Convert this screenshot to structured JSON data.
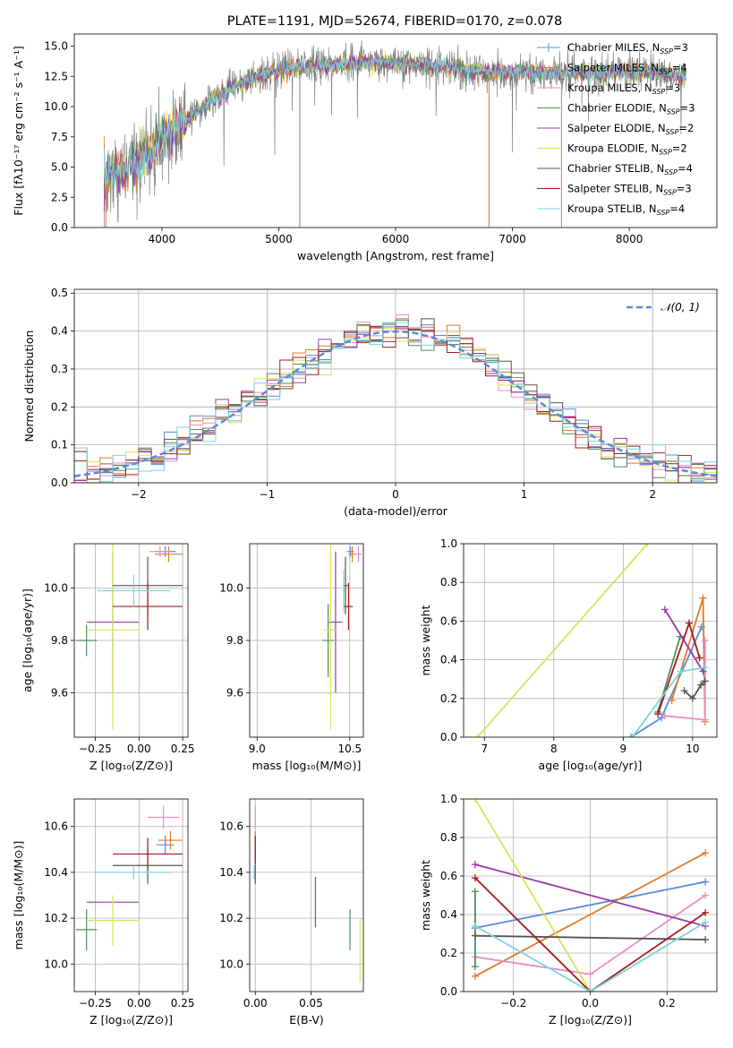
{
  "title": "PLATE=1191, MJD=52674, FIBERID=0170, z=0.078",
  "colors": {
    "Chabrier MILES": "#5b8bd9",
    "Salpeter MILES": "#e07b2a",
    "Kroupa MILES": "#e88ec4",
    "Chabrier ELODIE": "#4e8b5f",
    "Salpeter ELODIE": "#9b3aa6",
    "Kroupa ELODIE": "#d8e35a",
    "Chabrier STELIB": "#555555",
    "Salpeter STELIB": "#a01c1c",
    "Kroupa STELIB": "#7dd3dc"
  },
  "chart_data": [
    {
      "id": "spectrum",
      "type": "line",
      "title": "PLATE=1191, MJD=52674, FIBERID=0170, z=0.078",
      "xlabel": "wavelength [Angstrom, rest frame]",
      "ylabel": "Flux [fλ10⁻¹⁷ erg cm⁻² s⁻¹ A⁻¹]",
      "xlim": [
        3250,
        8750
      ],
      "ylim": [
        0,
        16
      ],
      "xticks": [
        4000,
        5000,
        6000,
        7000,
        8000
      ],
      "yticks": [
        0.0,
        2.5,
        5.0,
        7.5,
        10.0,
        12.5,
        15.0
      ],
      "legend_position": "top-right",
      "legend": [
        {
          "model": "Chabrier MILES",
          "label": "Chabrier MILES, N",
          "sub": "SSP",
          "tail": "=3"
        },
        {
          "model": "Salpeter MILES",
          "label": "Salpeter MILES, N",
          "sub": "SSP",
          "tail": "=4"
        },
        {
          "model": "Kroupa MILES",
          "label": "Kroupa MILES, N",
          "sub": "SSP",
          "tail": "=3"
        },
        {
          "model": "Chabrier ELODIE",
          "label": "Chabrier ELODIE, N",
          "sub": "SSP",
          "tail": "=3"
        },
        {
          "model": "Salpeter ELODIE",
          "label": "Salpeter ELODIE, N",
          "sub": "SSP",
          "tail": "=2"
        },
        {
          "model": "Kroupa ELODIE",
          "label": "Kroupa ELODIE, N",
          "sub": "SSP",
          "tail": "=2"
        },
        {
          "model": "Chabrier STELIB",
          "label": "Chabrier STELIB, N",
          "sub": "SSP",
          "tail": "=4"
        },
        {
          "model": "Salpeter STELIB",
          "label": "Salpeter STELIB, N",
          "sub": "SSP",
          "tail": "=3"
        },
        {
          "model": "Kroupa STELIB",
          "label": "Kroupa STELIB, N",
          "sub": "SSP",
          "tail": "=4"
        }
      ],
      "data_envelope": {
        "x": [
          3500,
          3700,
          3900,
          4000,
          4200,
          4400,
          4600,
          4800,
          5000,
          5200,
          5400,
          5600,
          5800,
          6000,
          6200,
          6400,
          6600,
          6800,
          7000,
          7200,
          7400,
          7600,
          7800,
          8000,
          8200,
          8400,
          8600
        ],
        "y": [
          4.2,
          4.8,
          6.3,
          7.6,
          8.9,
          10.4,
          11.6,
          12.4,
          13.0,
          13.3,
          13.4,
          13.6,
          13.7,
          13.6,
          13.5,
          13.3,
          13.0,
          12.8,
          12.9,
          12.8,
          12.7,
          12.9,
          12.8,
          12.8,
          12.9,
          12.6,
          12.4
        ]
      }
    },
    {
      "id": "residuals",
      "type": "line",
      "xlabel": "(data-model)/error",
      "ylabel": "Normed distribution",
      "xlim": [
        -2.5,
        2.5
      ],
      "ylim": [
        0,
        0.51
      ],
      "xticks": [
        -2,
        -1,
        0,
        1,
        2
      ],
      "yticks": [
        0.0,
        0.1,
        0.2,
        0.3,
        0.4,
        0.5
      ],
      "legend_position": "top-right",
      "series": [
        {
          "name": "𝒩(0, 1)",
          "style": "dashed",
          "color": "#5b8bd9",
          "kind": "normal",
          "mu": 0,
          "sigma": 1
        }
      ],
      "histograms": {
        "bin_width": 0.1,
        "x_start": -2.5,
        "x_end": 2.5
      }
    },
    {
      "id": "age_vs_Z",
      "type": "scatter",
      "xlabel": "Z [log₁₀(Z/Z⊙)]",
      "ylabel": "age  [log₁₀(age/yr)]",
      "xlim": [
        -0.37,
        0.28
      ],
      "ylim": [
        9.43,
        10.17
      ],
      "xticks": [
        -0.25,
        0.0,
        0.25
      ],
      "yticks": [
        9.6,
        9.8,
        10.0
      ],
      "points": [
        {
          "model": "Chabrier MILES",
          "x": 0.15,
          "y": 10.14,
          "xerr": 0.06,
          "yerr": 0.02
        },
        {
          "model": "Salpeter MILES",
          "x": 0.17,
          "y": 10.13,
          "xerr": 0.08,
          "yerr": 0.03
        },
        {
          "model": "Kroupa MILES",
          "x": 0.12,
          "y": 10.14,
          "xerr": 0.06,
          "yerr": 0.02
        },
        {
          "model": "Chabrier ELODIE",
          "x": -0.3,
          "y": 9.8,
          "xerr": 0.06,
          "yerr": 0.06
        },
        {
          "model": "Salpeter ELODIE",
          "x": -0.15,
          "y": 9.87,
          "xerr": 0.15,
          "yerr": 0.27
        },
        {
          "model": "Kroupa ELODIE",
          "x": -0.15,
          "y": 9.84,
          "xerr": 0.15,
          "yerr": 0.38
        },
        {
          "model": "Chabrier STELIB",
          "x": 0.05,
          "y": 10.01,
          "xerr": 0.2,
          "yerr": 0.11
        },
        {
          "model": "Salpeter STELIB",
          "x": 0.05,
          "y": 9.93,
          "xerr": 0.2,
          "yerr": 0.09
        },
        {
          "model": "Kroupa STELIB",
          "x": -0.03,
          "y": 9.99,
          "xerr": 0.21,
          "yerr": 0.06
        }
      ]
    },
    {
      "id": "age_vs_mass",
      "type": "scatter",
      "xlabel": "mass [log₁₀(M/M⊙)]",
      "ylabel": "",
      "xlim": [
        8.88,
        10.72
      ],
      "ylim": [
        9.43,
        10.17
      ],
      "xticks": [
        9.0,
        10.5
      ],
      "yticks": [
        9.6,
        9.8,
        10.0
      ],
      "points": [
        {
          "model": "Chabrier MILES",
          "x": 10.51,
          "y": 10.14,
          "xerr": 0.06,
          "yerr": 0.02
        },
        {
          "model": "Salpeter MILES",
          "x": 10.54,
          "y": 10.13,
          "xerr": 0.06,
          "yerr": 0.03
        },
        {
          "model": "Kroupa MILES",
          "x": 10.64,
          "y": 10.13,
          "xerr": 0.05,
          "yerr": 0.03
        },
        {
          "model": "Chabrier ELODIE",
          "x": 10.15,
          "y": 9.8,
          "xerr": 0.09,
          "yerr": 0.14
        },
        {
          "model": "Salpeter ELODIE",
          "x": 10.27,
          "y": 9.87,
          "xerr": 0.11,
          "yerr": 0.27
        },
        {
          "model": "Kroupa ELODIE",
          "x": 10.19,
          "y": 9.84,
          "xerr": 0.11,
          "yerr": 0.38
        },
        {
          "model": "Chabrier STELIB",
          "x": 10.43,
          "y": 10.01,
          "xerr": 0.04,
          "yerr": 0.11
        },
        {
          "model": "Salpeter STELIB",
          "x": 10.48,
          "y": 9.93,
          "xerr": 0.07,
          "yerr": 0.09
        },
        {
          "model": "Kroupa STELIB",
          "x": 10.4,
          "y": 9.99,
          "xerr": 0.02,
          "yerr": 0.08
        }
      ]
    },
    {
      "id": "weight_vs_age",
      "type": "line",
      "xlabel": "age  [log₁₀(age/yr)]",
      "ylabel": "mass weight",
      "xlim": [
        6.7,
        10.35
      ],
      "ylim": [
        0.0,
        1.0
      ],
      "xticks": [
        7,
        8,
        9,
        10
      ],
      "yticks": [
        0.0,
        0.2,
        0.4,
        0.6,
        0.8,
        1.0
      ],
      "series": [
        {
          "model": "Chabrier MILES",
          "x": [
            9.11,
            9.55,
            10.13
          ],
          "y": [
            0.0,
            0.1,
            0.57
          ]
        },
        {
          "model": "Salpeter MILES",
          "x": [
            9.7,
            10.15,
            10.18
          ],
          "y": [
            0.19,
            0.72,
            0.08
          ]
        },
        {
          "model": "Kroupa MILES",
          "x": [
            9.6,
            10.18,
            10.18
          ],
          "y": [
            0.11,
            0.09,
            0.5
          ]
        },
        {
          "model": "Chabrier ELODIE",
          "x": [
            9.5,
            9.82
          ],
          "y": [
            0.13,
            0.52
          ]
        },
        {
          "model": "Salpeter ELODIE",
          "x": [
            9.6,
            10.15
          ],
          "y": [
            0.66,
            0.34
          ]
        },
        {
          "model": "Kroupa ELODIE",
          "x": [
            6.9,
            9.35
          ],
          "y": [
            0.0,
            1.0
          ]
        },
        {
          "model": "Chabrier STELIB",
          "x": [
            9.88,
            10.0,
            10.12,
            10.18
          ],
          "y": [
            0.24,
            0.2,
            0.27,
            0.29
          ]
        },
        {
          "model": "Salpeter STELIB",
          "x": [
            9.5,
            9.95,
            10.1
          ],
          "y": [
            0.12,
            0.59,
            0.41
          ]
        },
        {
          "model": "Kroupa STELIB",
          "x": [
            9.13,
            9.83,
            10.18
          ],
          "y": [
            0.0,
            0.34,
            0.36
          ]
        }
      ]
    },
    {
      "id": "mass_vs_Z",
      "type": "scatter",
      "xlabel": "Z [log₁₀(Z/Z⊙)]",
      "ylabel": "mass [log₁₀(M/M⊙)]",
      "xlim": [
        -0.37,
        0.28
      ],
      "ylim": [
        9.88,
        10.72
      ],
      "xticks": [
        -0.25,
        0.0,
        0.25
      ],
      "yticks": [
        10.0,
        10.2,
        10.4,
        10.6
      ],
      "points": [
        {
          "model": "Chabrier MILES",
          "x": 0.15,
          "y": 10.52,
          "xerr": 0.05,
          "yerr": 0.04
        },
        {
          "model": "Salpeter MILES",
          "x": 0.18,
          "y": 10.54,
          "xerr": 0.07,
          "yerr": 0.04
        },
        {
          "model": "Kroupa MILES",
          "x": 0.14,
          "y": 10.64,
          "xerr": 0.09,
          "yerr": 0.05
        },
        {
          "model": "Chabrier ELODIE",
          "x": -0.3,
          "y": 10.15,
          "xerr": 0.06,
          "yerr": 0.09
        },
        {
          "model": "Salpeter ELODIE",
          "x": -0.15,
          "y": 10.27,
          "xerr": 0.15,
          "yerr": 0.0
        },
        {
          "model": "Kroupa ELODIE",
          "x": -0.15,
          "y": 10.19,
          "xerr": 0.15,
          "yerr": 0.11
        },
        {
          "model": "Chabrier STELIB",
          "x": 0.05,
          "y": 10.43,
          "xerr": 0.2,
          "yerr": 0.08
        },
        {
          "model": "Salpeter STELIB",
          "x": 0.05,
          "y": 10.48,
          "xerr": 0.2,
          "yerr": 0.07
        },
        {
          "model": "Kroupa STELIB",
          "x": -0.03,
          "y": 10.4,
          "xerr": 0.21,
          "yerr": 0.03
        }
      ]
    },
    {
      "id": "mass_vs_ebv",
      "type": "scatter",
      "xlabel": "E(B-V)",
      "ylabel": "",
      "xlim": [
        -0.005,
        0.097
      ],
      "ylim": [
        9.88,
        10.72
      ],
      "xticks": [
        0.0,
        0.05
      ],
      "yticks": [
        10.0,
        10.2,
        10.4,
        10.6
      ],
      "points": [
        {
          "model": "Chabrier MILES",
          "x": 0.0,
          "y": 10.52,
          "xerr": 0,
          "yerr": 0.04
        },
        {
          "model": "Salpeter MILES",
          "x": 0.0,
          "y": 10.54,
          "xerr": 0,
          "yerr": 0.04
        },
        {
          "model": "Kroupa MILES",
          "x": 0.0,
          "y": 10.64,
          "xerr": 0,
          "yerr": 0.05
        },
        {
          "model": "Chabrier ELODIE",
          "x": 0.085,
          "y": 10.15,
          "xerr": 0,
          "yerr": 0.09
        },
        {
          "model": "Salpeter ELODIE",
          "x": 0.054,
          "y": 10.27,
          "xerr": 0,
          "yerr": 0.11
        },
        {
          "model": "Kroupa ELODIE",
          "x": 0.094,
          "y": 10.06,
          "xerr": 0,
          "yerr": 0.14
        },
        {
          "model": "Chabrier STELIB",
          "x": 0.0,
          "y": 10.43,
          "xerr": 0,
          "yerr": 0.08
        },
        {
          "model": "Salpeter STELIB",
          "x": 0.0,
          "y": 10.5,
          "xerr": 0,
          "yerr": 0.06
        },
        {
          "model": "Kroupa STELIB",
          "x": -0.001,
          "y": 10.4,
          "xerr": 0,
          "yerr": 0.03
        }
      ]
    },
    {
      "id": "weight_vs_Z",
      "type": "line",
      "xlabel": "Z [log₁₀(Z/Z⊙)]",
      "ylabel": "mass weight",
      "xlim": [
        -0.33,
        0.33
      ],
      "ylim": [
        0.0,
        1.0
      ],
      "xticks": [
        -0.2,
        0.0,
        0.2
      ],
      "yticks": [
        0.0,
        0.2,
        0.4,
        0.6,
        0.8,
        1.0
      ],
      "series": [
        {
          "model": "Chabrier MILES",
          "x": [
            -0.3,
            0.3
          ],
          "y": [
            0.33,
            0.57
          ]
        },
        {
          "model": "Salpeter MILES",
          "x": [
            -0.3,
            0.3
          ],
          "y": [
            0.08,
            0.72
          ]
        },
        {
          "model": "Kroupa MILES",
          "x": [
            -0.3,
            0.0,
            0.3
          ],
          "y": [
            0.18,
            0.09,
            0.5
          ]
        },
        {
          "model": "Chabrier ELODIE",
          "x": [
            -0.3,
            -0.3
          ],
          "y": [
            0.13,
            0.52
          ]
        },
        {
          "model": "Salpeter ELODIE",
          "x": [
            -0.3,
            0.3
          ],
          "y": [
            0.66,
            0.34
          ]
        },
        {
          "model": "Kroupa ELODIE",
          "x": [
            -0.3,
            0.0
          ],
          "y": [
            1.0,
            0.0
          ]
        },
        {
          "model": "Chabrier STELIB",
          "x": [
            -0.3,
            0.3
          ],
          "y": [
            0.29,
            0.27
          ]
        },
        {
          "model": "Salpeter STELIB",
          "x": [
            -0.3,
            0.0,
            0.3
          ],
          "y": [
            0.59,
            0.0,
            0.41
          ]
        },
        {
          "model": "Kroupa STELIB",
          "x": [
            -0.3,
            0.0,
            0.3
          ],
          "y": [
            0.34,
            0.0,
            0.36
          ]
        }
      ]
    }
  ]
}
